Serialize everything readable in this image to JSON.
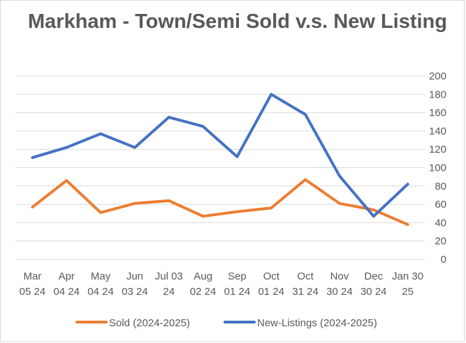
{
  "chart_data": {
    "type": "line",
    "title": "Markham - Town/Semi Sold v.s. New Listing",
    "categories": [
      [
        "Mar",
        "05 24"
      ],
      [
        "Apr",
        "04 24"
      ],
      [
        "May",
        "04 24"
      ],
      [
        "Jun",
        "03 24"
      ],
      [
        "Jul 03",
        "24"
      ],
      [
        "Aug",
        "02 24"
      ],
      [
        "Sep",
        "01 24"
      ],
      [
        "Oct",
        "01 24"
      ],
      [
        "Oct",
        "31 24"
      ],
      [
        "Nov",
        "30 24"
      ],
      [
        "Dec",
        "30 24"
      ],
      [
        "Jan 30",
        "25"
      ]
    ],
    "series": [
      {
        "name": "Sold (2024-2025)",
        "color": "#ED7D31",
        "values": [
          57,
          86,
          51,
          61,
          64,
          47,
          52,
          56,
          87,
          61,
          54,
          38
        ]
      },
      {
        "name": "New-Listings (2024-2025)",
        "color": "#4472C4",
        "values": [
          111,
          122,
          137,
          122,
          155,
          145,
          112,
          180,
          158,
          91,
          47,
          82
        ]
      }
    ],
    "ylim": [
      0,
      200
    ],
    "yticks": [
      0,
      20,
      40,
      60,
      80,
      100,
      120,
      140,
      160,
      180,
      200
    ],
    "y_axis_side": "right",
    "grid": true,
    "legend_position": "bottom",
    "gridline_color": "#d9d9d9",
    "tick_color": "#595959"
  }
}
